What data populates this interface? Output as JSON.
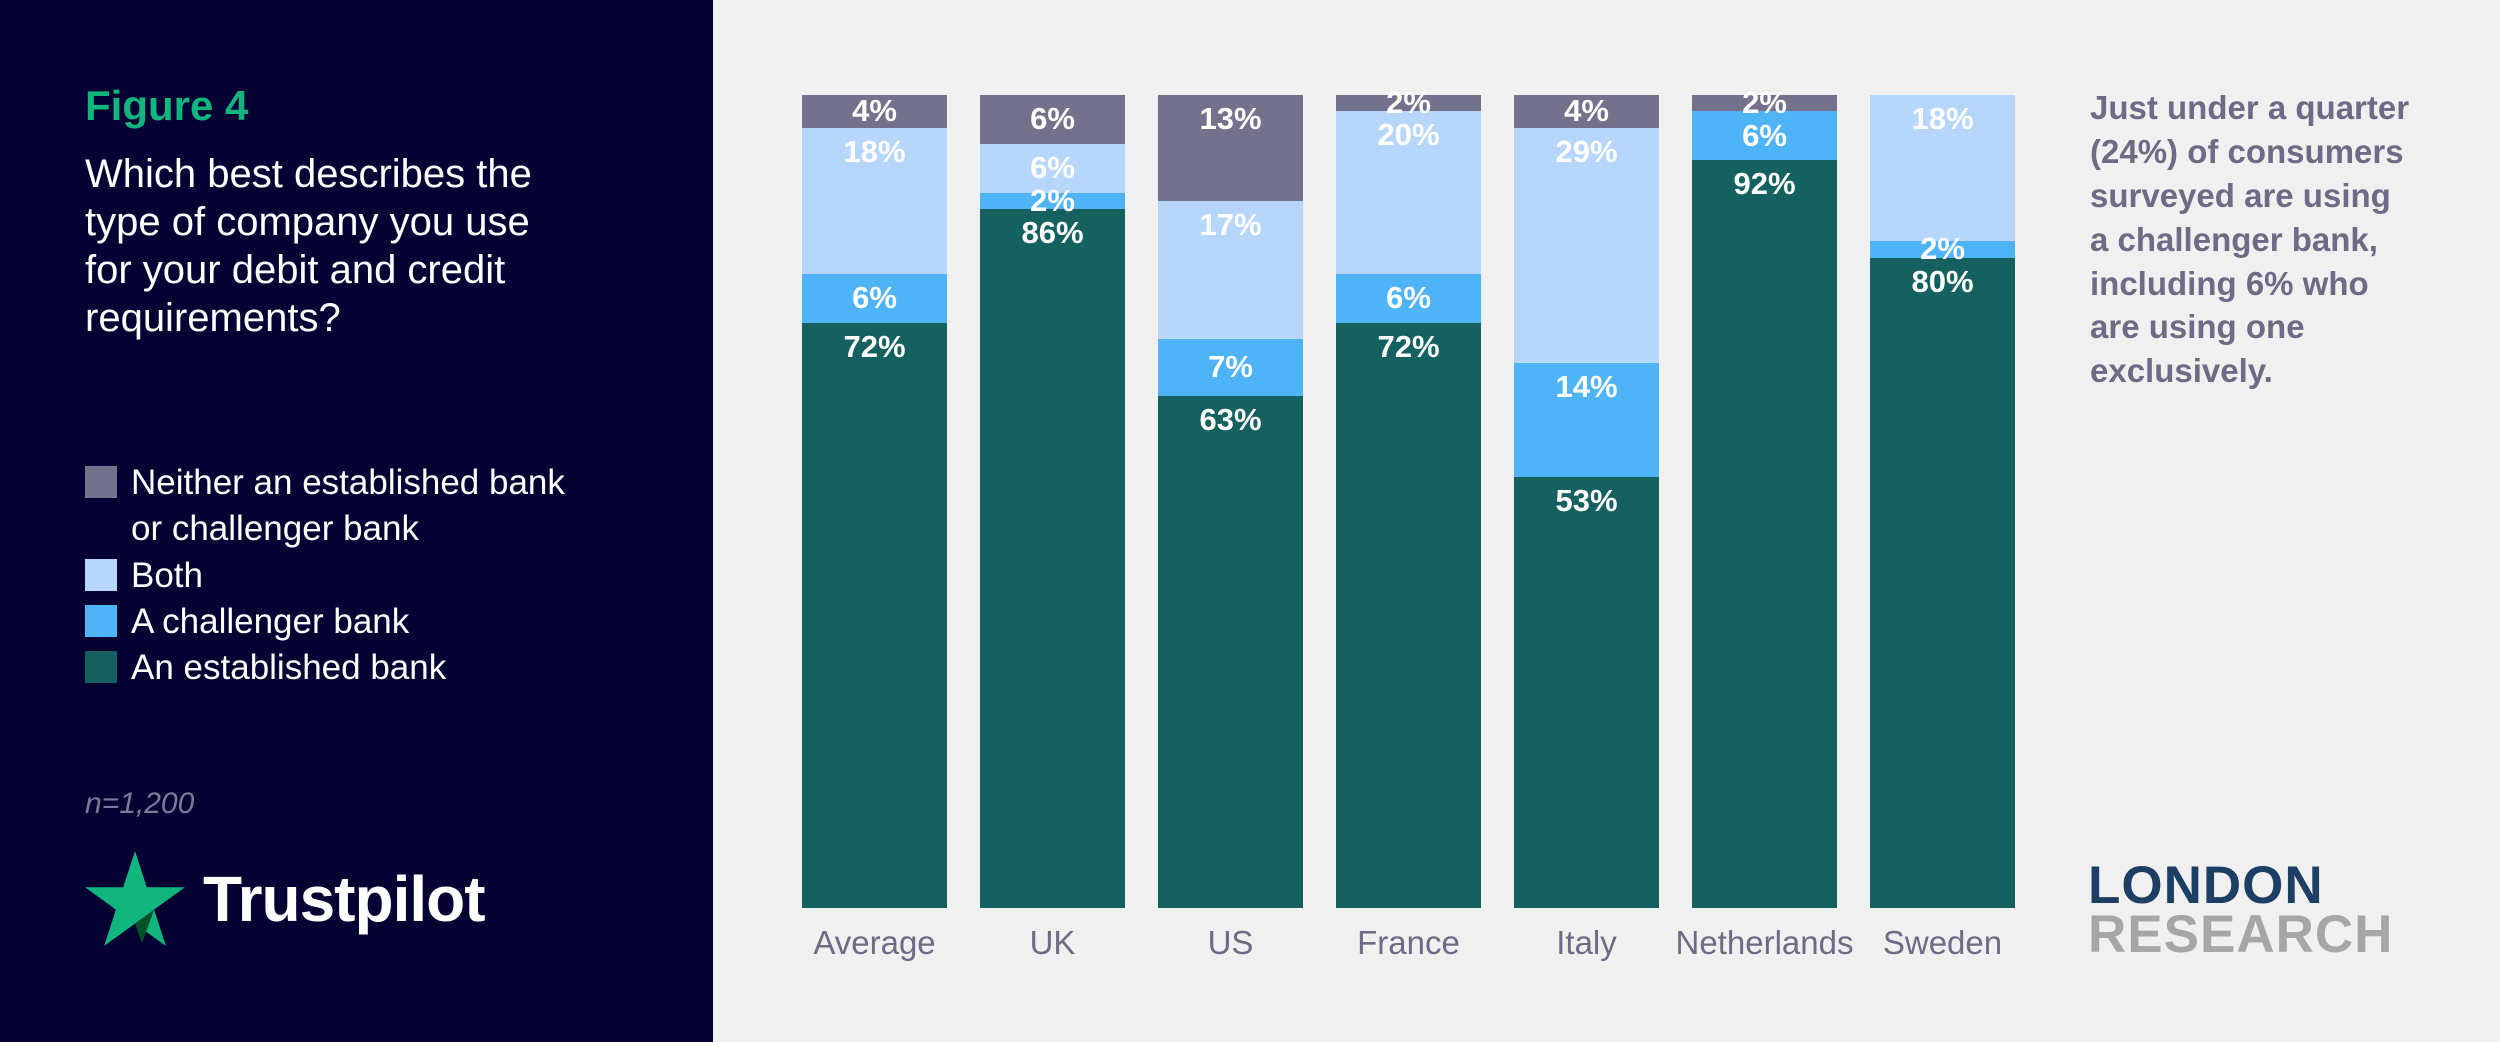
{
  "panel": {
    "figure_label": "Figure 4",
    "question": "Which best describes the\ntype of company you use\nfor your debit and credit\nrequirements?",
    "sample_size": "n=1,200",
    "brand_name": "Trustpilot"
  },
  "legend": [
    {
      "label": "Neither an established bank\nor challenger bank",
      "color": "#73718c"
    },
    {
      "label": "Both",
      "color": "#b6d7fb"
    },
    {
      "label": "A challenger bank",
      "color": "#4fb4f7"
    },
    {
      "label": "An established bank",
      "color": "#14615f"
    }
  ],
  "chart_data": {
    "type": "bar",
    "variant": "stacked-100-percent-column",
    "unit": "%",
    "categories": [
      "Average",
      "UK",
      "US",
      "France",
      "Italy",
      "Netherlands",
      "Sweden"
    ],
    "series": [
      {
        "name": "Neither an established bank or challenger bank",
        "color": "#73718c",
        "values": [
          4,
          6,
          13,
          2,
          4,
          2,
          0
        ]
      },
      {
        "name": "Both",
        "color": "#b6d7fb",
        "values": [
          18,
          6,
          17,
          20,
          29,
          0,
          18
        ]
      },
      {
        "name": "A challenger bank",
        "color": "#4fb4f7",
        "values": [
          6,
          2,
          7,
          6,
          14,
          6,
          2
        ]
      },
      {
        "name": "An established bank",
        "color": "#14615f",
        "values": [
          72,
          86,
          63,
          72,
          53,
          92,
          80
        ]
      }
    ],
    "ylim": [
      0,
      100
    ],
    "grid": false,
    "axis_lines": false,
    "value_labels": "inside-segment",
    "legend_position": "left-panel",
    "series_order_note": "series listed top-to-bottom as drawn in each column"
  },
  "annotation": {
    "text": "Just under a quarter\n(24%) of consumers\nsurveyed are using\na challenger bank,\nincluding 6% who\nare using one\nexclusively."
  },
  "footer_logo": {
    "line1": "LONDON",
    "line2": "RESEARCH"
  },
  "colors": {
    "left_panel_bg": "#050233",
    "right_bg": "#f0f0f1",
    "accent_green": "#10b67e",
    "star_green": "#2fb886",
    "star_notch": "#005128",
    "bar_label_text": "#ffffff",
    "category_label_gray": "#6d6b85",
    "annotation_gray": "#6d6b85",
    "sample_gray": "#7b7a99",
    "london_navy": "#1c3f63",
    "research_gray": "#a6a6a6"
  }
}
